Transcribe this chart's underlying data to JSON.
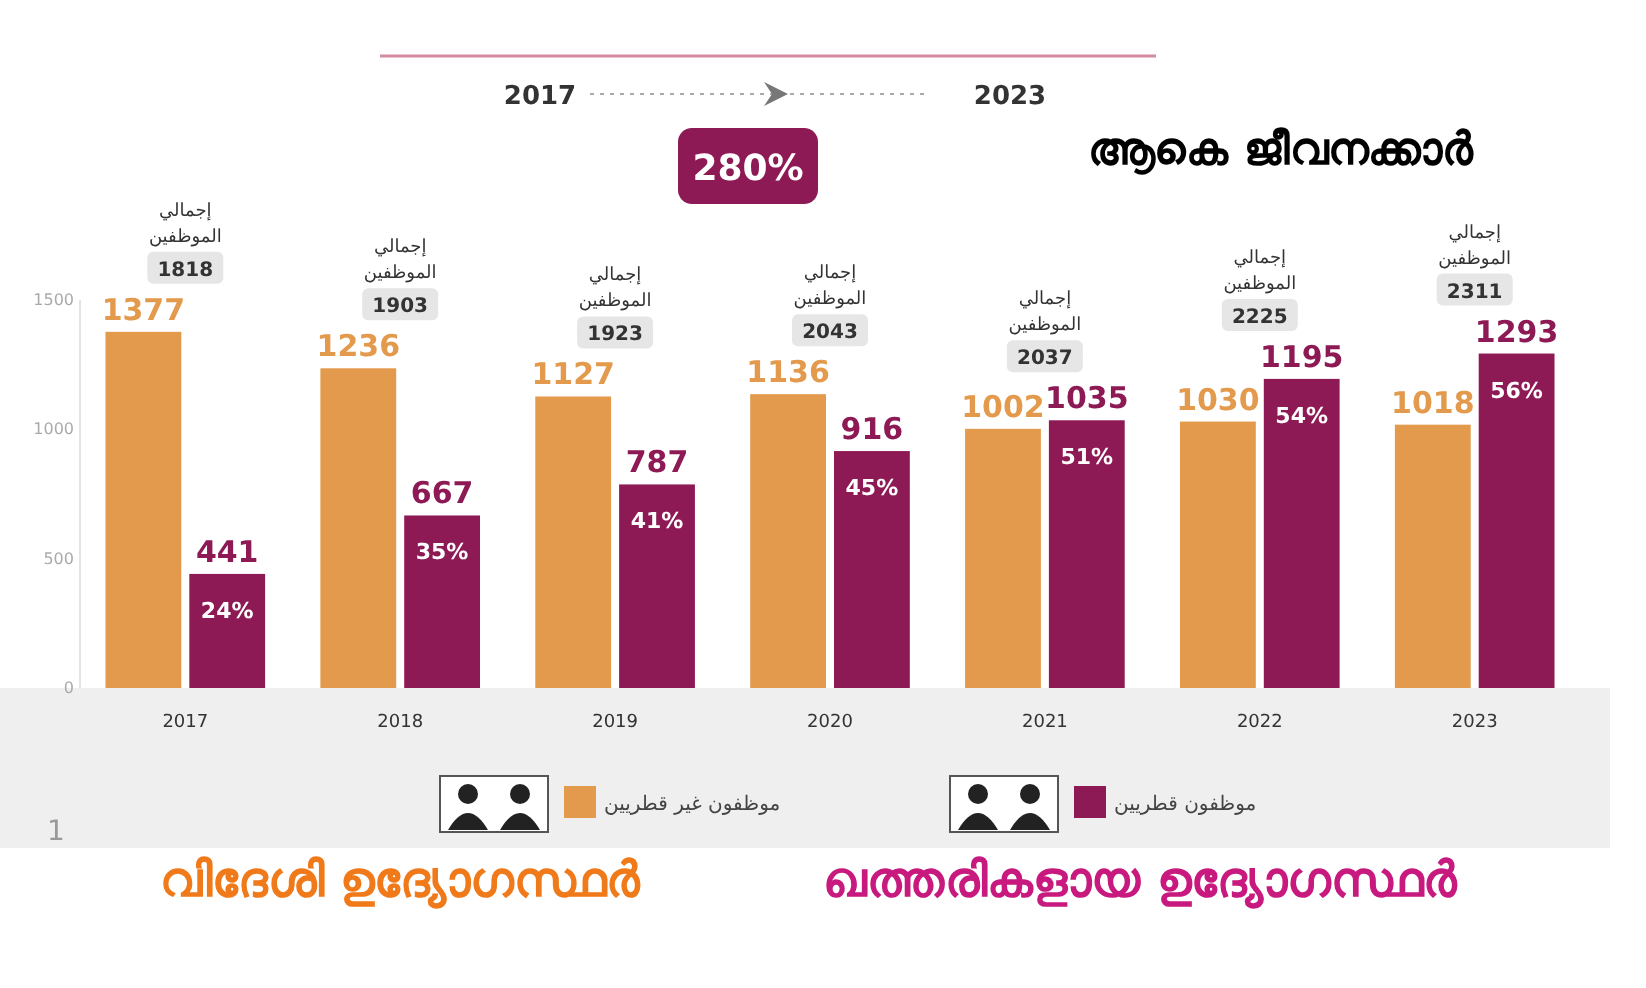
{
  "chart_data": {
    "type": "bar",
    "title": "ആകെ ജീവനക്കാർ",
    "categories": [
      "2017",
      "2018",
      "2019",
      "2020",
      "2021",
      "2022",
      "2023"
    ],
    "series": [
      {
        "name": "موظفون غير قطريين",
        "color": "#e39a4c",
        "values": [
          1377,
          1236,
          1127,
          1136,
          1002,
          1030,
          1018
        ]
      },
      {
        "name": "موظفون قطريين",
        "color": "#8e1a55",
        "values": [
          441,
          667,
          787,
          916,
          1035,
          1195,
          1293
        ]
      }
    ],
    "ylim": [
      0,
      1500
    ],
    "yticks": [
      0,
      500,
      1000,
      1500
    ],
    "data_labels": true,
    "grid": false,
    "legend": "bottom",
    "annotations": [
      "2017",
      "2023",
      "280%",
      "വിദേശി ഉദ്യോഗസ്ഥർ",
      "ഖത്തരികളായ ഉദ്യോഗസ്ഥർ",
      "1",
      "إجمالي\nالموظفين\n1818",
      "إجمالي\nالموظفين\n1903",
      "إجمالي\nالموظفين\n1923",
      "إجمالي\nالموظفين\n2043",
      "إجمالي\nالموظفين\n2037",
      "إجمالي\nالموظفين\n2225",
      "إجمالي\nالموظفين\n2311",
      {
        "text": "24%",
        "x": "2017",
        "y": 441
      },
      {
        "text": "35%",
        "x": "2018",
        "y": 667
      },
      {
        "text": "41%",
        "x": "2019",
        "y": 787
      },
      {
        "text": "45%",
        "x": "2020",
        "y": 916
      },
      {
        "text": "51%",
        "x": "2021",
        "y": 1035
      },
      {
        "text": "54%",
        "x": "2022",
        "y": 1195
      },
      {
        "text": "56%",
        "x": "2023",
        "y": 1293
      }
    ]
  }
}
